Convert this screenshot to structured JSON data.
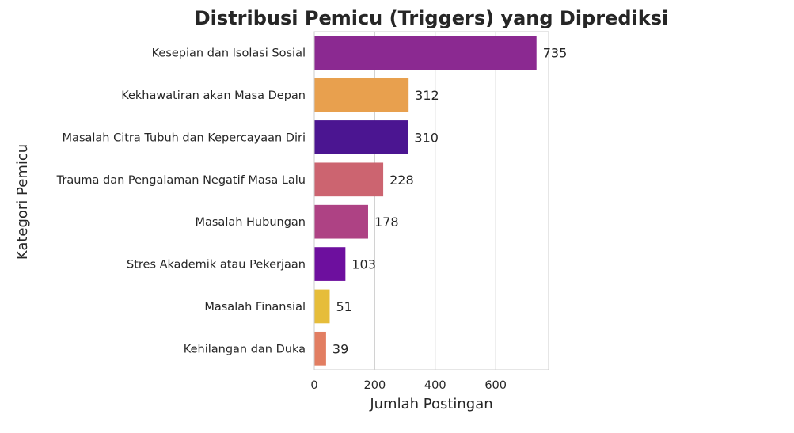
{
  "chart_data": {
    "type": "bar",
    "orientation": "horizontal",
    "title": "Distribusi Pemicu (Triggers) yang Diprediksi",
    "xlabel": "Jumlah Postingan",
    "ylabel": "Kategori Pemicu",
    "categories": [
      "Kesepian dan Isolasi Sosial",
      "Kekhawatiran akan Masa Depan",
      "Masalah Citra Tubuh dan Kepercayaan Diri",
      "Trauma dan Pengalaman Negatif Masa Lalu",
      "Masalah Hubungan",
      "Stres Akademik atau Pekerjaan",
      "Masalah Finansial",
      "Kehilangan dan Duka"
    ],
    "values": [
      735,
      312,
      310,
      228,
      178,
      103,
      51,
      39
    ],
    "colors": [
      "#8b2991",
      "#e8a04e",
      "#4b1591",
      "#cc6470",
      "#ae4284",
      "#6d0f9e",
      "#e6bd3a",
      "#e27e62"
    ],
    "xlim": [
      0,
      775
    ],
    "xticks": [
      0,
      200,
      400,
      600
    ],
    "grid": "vertical",
    "value_labels": true
  }
}
